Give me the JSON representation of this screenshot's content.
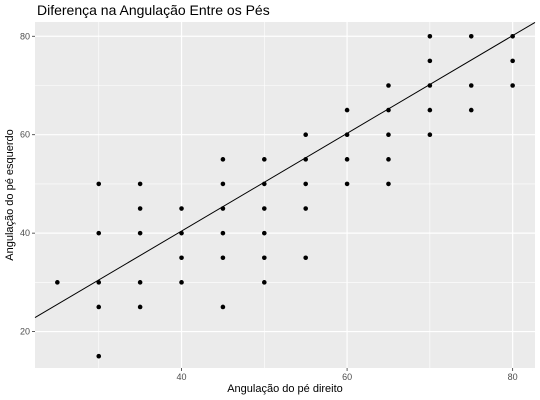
{
  "chart_data": {
    "type": "scatter",
    "title": "Diferença na Angulação Entre os Pés",
    "xlabel": "Angulação do pé direito",
    "ylabel": "Angulação do pé esquerdo",
    "xlim": [
      22.3,
      82.7
    ],
    "ylim": [
      12.6,
      82.9
    ],
    "x_ticks": [
      40,
      60,
      80
    ],
    "y_ticks": [
      20,
      40,
      60,
      80
    ],
    "x_minor": [
      30,
      50,
      70
    ],
    "y_minor": [
      30,
      50,
      70
    ],
    "grid": true,
    "panel_background": "#ebebeb",
    "grid_color": "#ffffff",
    "point_color": "#000000",
    "line_color": "#000000",
    "reference_line": {
      "slope": 0.993,
      "intercept": 0.7
    },
    "points": [
      {
        "x": 25,
        "y": 30
      },
      {
        "x": 30,
        "y": 15
      },
      {
        "x": 30,
        "y": 25
      },
      {
        "x": 30,
        "y": 30
      },
      {
        "x": 30,
        "y": 40
      },
      {
        "x": 30,
        "y": 50
      },
      {
        "x": 35,
        "y": 25
      },
      {
        "x": 35,
        "y": 30
      },
      {
        "x": 35,
        "y": 40
      },
      {
        "x": 35,
        "y": 45
      },
      {
        "x": 35,
        "y": 50
      },
      {
        "x": 40,
        "y": 30
      },
      {
        "x": 40,
        "y": 35
      },
      {
        "x": 40,
        "y": 40
      },
      {
        "x": 40,
        "y": 45
      },
      {
        "x": 45,
        "y": 25
      },
      {
        "x": 45,
        "y": 35
      },
      {
        "x": 45,
        "y": 40
      },
      {
        "x": 45,
        "y": 45
      },
      {
        "x": 45,
        "y": 50
      },
      {
        "x": 45,
        "y": 55
      },
      {
        "x": 50,
        "y": 30
      },
      {
        "x": 50,
        "y": 35
      },
      {
        "x": 50,
        "y": 40
      },
      {
        "x": 50,
        "y": 45
      },
      {
        "x": 50,
        "y": 50
      },
      {
        "x": 50,
        "y": 55
      },
      {
        "x": 55,
        "y": 35
      },
      {
        "x": 55,
        "y": 45
      },
      {
        "x": 55,
        "y": 50
      },
      {
        "x": 55,
        "y": 55
      },
      {
        "x": 55,
        "y": 60
      },
      {
        "x": 60,
        "y": 50
      },
      {
        "x": 60,
        "y": 55
      },
      {
        "x": 60,
        "y": 60
      },
      {
        "x": 60,
        "y": 65
      },
      {
        "x": 65,
        "y": 50
      },
      {
        "x": 65,
        "y": 55
      },
      {
        "x": 65,
        "y": 60
      },
      {
        "x": 65,
        "y": 65
      },
      {
        "x": 65,
        "y": 70
      },
      {
        "x": 70,
        "y": 60
      },
      {
        "x": 70,
        "y": 65
      },
      {
        "x": 70,
        "y": 70
      },
      {
        "x": 70,
        "y": 75
      },
      {
        "x": 70,
        "y": 80
      },
      {
        "x": 75,
        "y": 65
      },
      {
        "x": 75,
        "y": 70
      },
      {
        "x": 75,
        "y": 80
      },
      {
        "x": 80,
        "y": 70
      },
      {
        "x": 80,
        "y": 75
      },
      {
        "x": 80,
        "y": 80
      }
    ]
  }
}
